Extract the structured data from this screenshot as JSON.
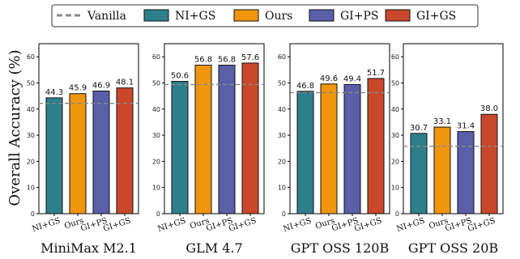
{
  "chart_data": {
    "type": "bar",
    "ylabel": "Overall Accuracy (%)",
    "ylim": [
      0,
      65
    ],
    "yticks": [
      0,
      10,
      20,
      30,
      40,
      50,
      60
    ],
    "categories": [
      "NI+GS",
      "Ours",
      "GI+PS",
      "GI+GS"
    ],
    "baseline_name": "Vanilla",
    "legend": [
      {
        "name": "Vanilla",
        "kind": "dashed-line",
        "color": "#888888"
      },
      {
        "name": "NI+GS",
        "kind": "bar",
        "color": "#2e7f8c"
      },
      {
        "name": "Ours",
        "kind": "bar",
        "color": "#f0960c"
      },
      {
        "name": "GI+PS",
        "kind": "bar",
        "color": "#5a5fa8"
      },
      {
        "name": "GI+GS",
        "kind": "bar",
        "color": "#c9472a"
      }
    ],
    "legend_position": "top-center",
    "grid": false,
    "panels": [
      {
        "title": "MiniMax M2.1",
        "values": [
          44.3,
          45.9,
          46.9,
          48.1
        ],
        "labels": [
          "44.3",
          "45.9",
          "46.9",
          "48.1"
        ],
        "baseline": 42.2
      },
      {
        "title": "GLM 4.7",
        "values": [
          50.6,
          56.8,
          56.8,
          57.6
        ],
        "labels": [
          "50.6",
          "56.8",
          "56.8",
          "57.6"
        ],
        "baseline": 49.4
      },
      {
        "title": "GPT OSS 120B",
        "values": [
          46.8,
          49.6,
          49.4,
          51.7
        ],
        "labels": [
          "46.8",
          "49.6",
          "49.4",
          "51.7"
        ],
        "baseline": 46.3
      },
      {
        "title": "GPT OSS 20B",
        "values": [
          30.7,
          33.1,
          31.4,
          38.0
        ],
        "labels": [
          "30.7",
          "33.1",
          "31.4",
          "38.0"
        ],
        "baseline": 25.8
      }
    ]
  }
}
